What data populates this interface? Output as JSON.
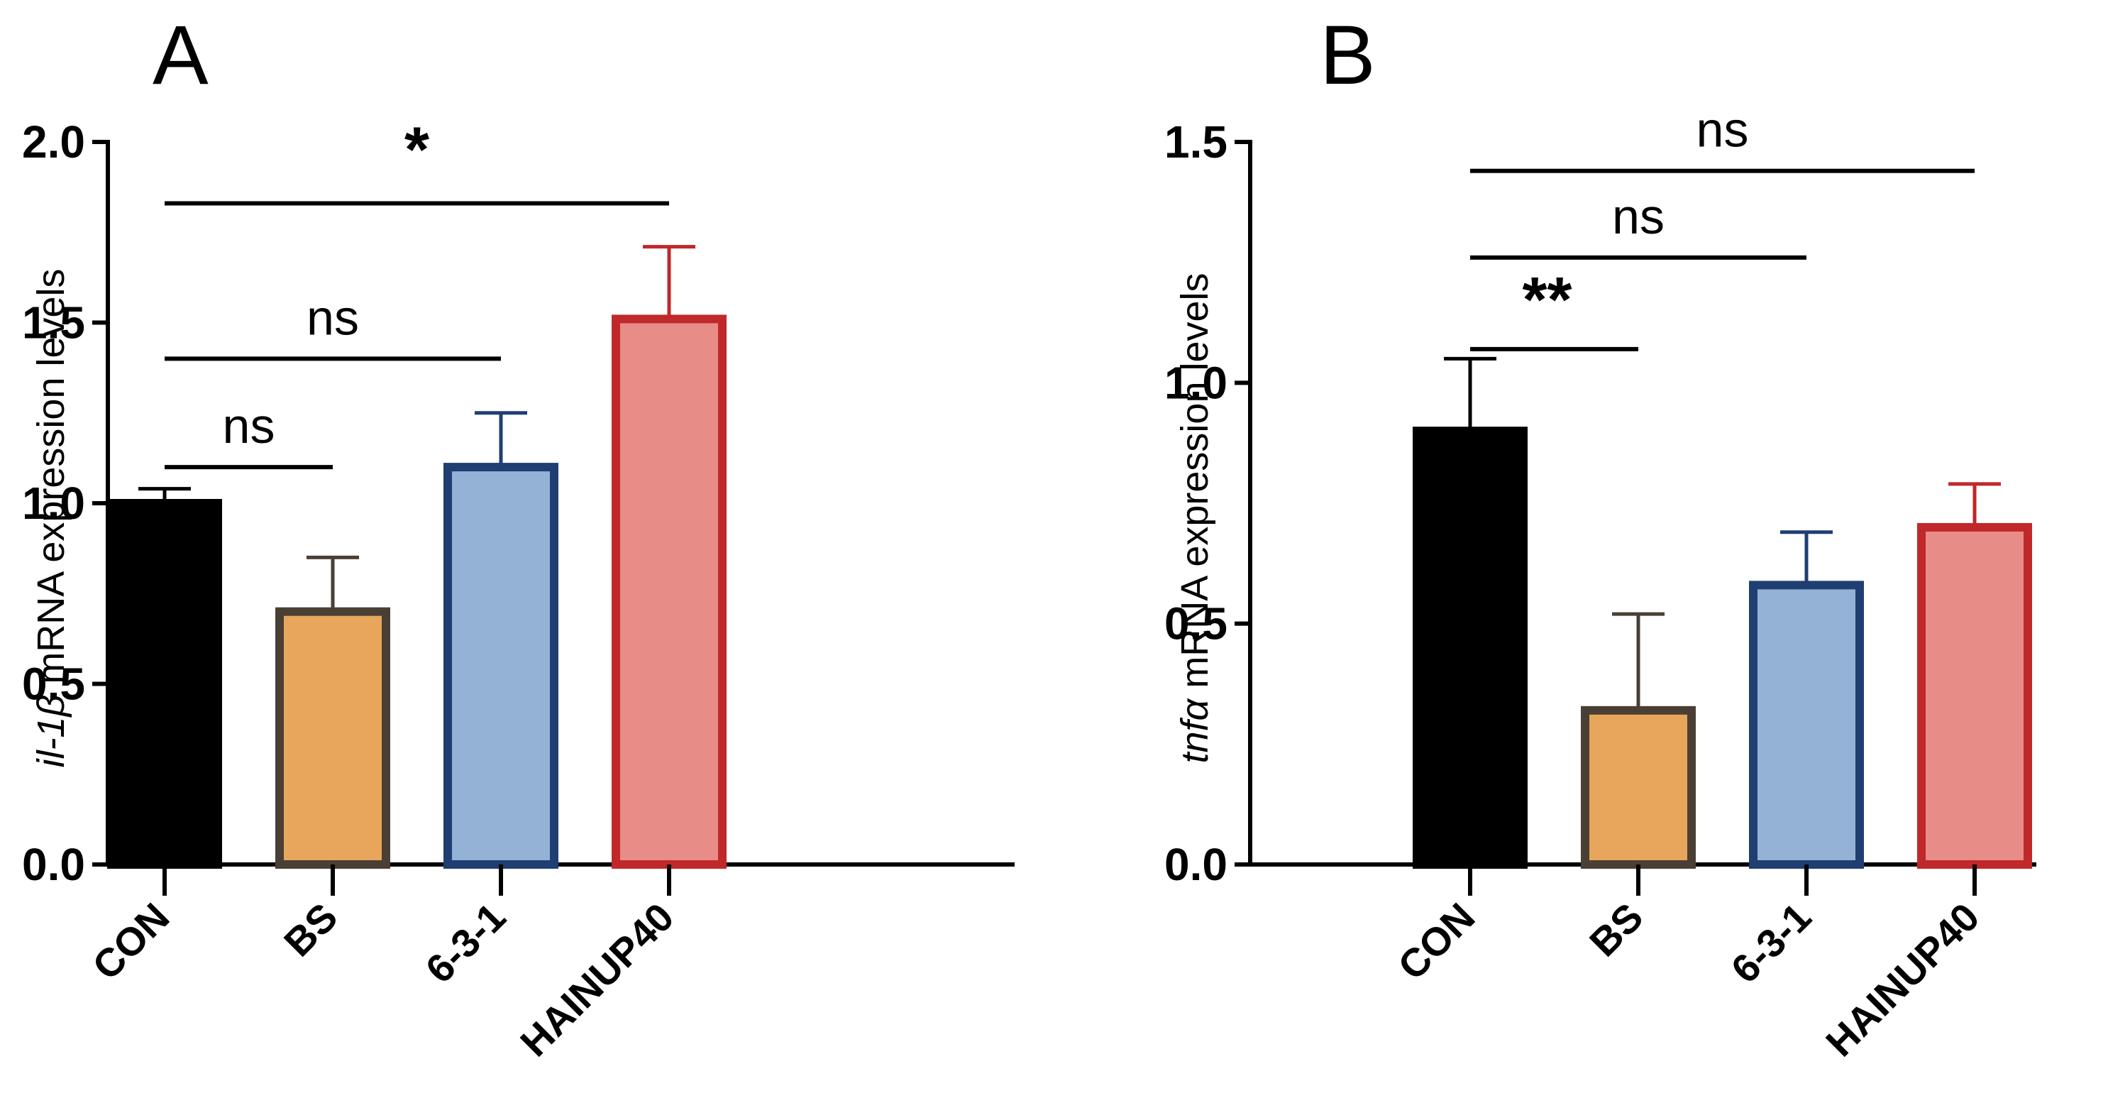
{
  "chart_data": [
    {
      "type": "bar",
      "panel": "A",
      "categories": [
        "CON",
        "BS",
        "6-3-1",
        "HAINUP40"
      ],
      "values": [
        1.0,
        0.7,
        1.1,
        1.51
      ],
      "errors": [
        0.04,
        0.15,
        0.15,
        0.2
      ],
      "ylabel_gene": "il-1β",
      "ylabel_rest": " mRNA expression levels",
      "ylim": [
        0,
        2.0
      ],
      "yticks": [
        "0.0",
        "0.5",
        "1.0",
        "1.5",
        "2.0"
      ],
      "ytick_values": [
        0,
        0.5,
        1.0,
        1.5,
        2.0
      ],
      "grid": false,
      "significance": [
        {
          "from": 0,
          "to": 1,
          "label": "ns",
          "y": 1.1
        },
        {
          "from": 0,
          "to": 2,
          "label": "ns",
          "y": 1.4
        },
        {
          "from": 0,
          "to": 3,
          "label": "*",
          "y": 1.83
        }
      ]
    },
    {
      "type": "bar",
      "panel": "B",
      "categories": [
        "CON",
        "BS",
        "6-3-1",
        "HAINUP40"
      ],
      "values": [
        0.9,
        0.32,
        0.58,
        0.7
      ],
      "errors": [
        0.15,
        0.2,
        0.11,
        0.09
      ],
      "ylabel_gene": "tnfα",
      "ylabel_rest": " mRNA expression levels",
      "ylim": [
        0,
        1.5
      ],
      "yticks": [
        "0.0",
        "0.5",
        "1.0",
        "1.5"
      ],
      "ytick_values": [
        0,
        0.5,
        1.0,
        1.5
      ],
      "grid": false,
      "significance": [
        {
          "from": 0,
          "to": 1,
          "label": "**",
          "y": 1.07
        },
        {
          "from": 0,
          "to": 2,
          "label": "ns",
          "y": 1.26
        },
        {
          "from": 0,
          "to": 3,
          "label": "ns",
          "y": 1.44
        }
      ]
    }
  ],
  "colors": {
    "fills": [
      "#000000",
      "#E8A65C",
      "#94B2D6",
      "#E88C88"
    ],
    "strokes": [
      "#000000",
      "#4A3F35",
      "#1F3F73",
      "#C0282A"
    ],
    "axis": "#000000"
  }
}
